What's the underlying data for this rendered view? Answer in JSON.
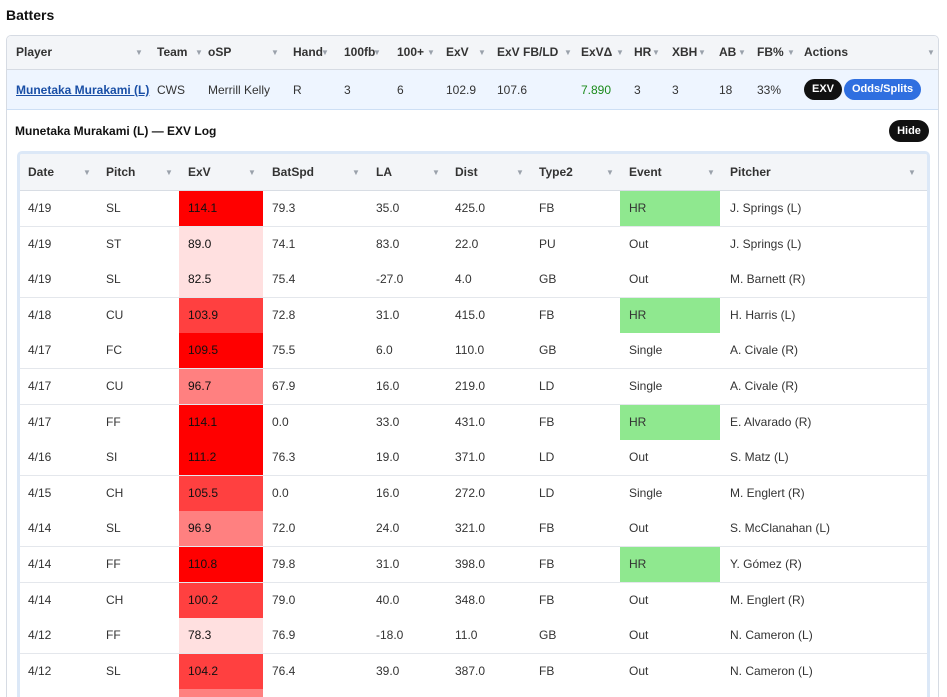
{
  "page": {
    "section_title": "Batters"
  },
  "batters": {
    "columns": [
      "Player",
      "Team",
      "oSP",
      "Hand",
      "100fb",
      "100+",
      "ExV",
      "ExV FB/LD",
      "ExVΔ",
      "HR",
      "XBH",
      "AB",
      "FB%",
      "Actions"
    ],
    "row": {
      "player": "Munetaka Murakami (L)",
      "team": "CWS",
      "osp": "Merrill Kelly",
      "hand": "R",
      "fb100": "3",
      "plus100": "6",
      "exv": "102.9",
      "exv_fbld": "107.6",
      "exv_delta": "7.890",
      "hr": "3",
      "xbh": "3",
      "ab": "18",
      "fb_pct": "33%",
      "btn_exv": "EXV",
      "btn_odds": "Odds/Splits"
    },
    "colors": {
      "delta_positive": "#1a8a1a",
      "link": "#1a4fa6",
      "row_highlight": "#eef5ff"
    }
  },
  "exv_log": {
    "title": "Munetaka Murakami (L) — EXV Log",
    "hide_label": "Hide",
    "columns": [
      "Date",
      "Pitch",
      "ExV",
      "BatSpd",
      "LA",
      "Dist",
      "Type2",
      "Event",
      "Pitcher"
    ],
    "heat_colors": {
      "very_high": "#ff0000",
      "high": "#ff4040",
      "mid": "#ff8080",
      "low": "#ffe0e0",
      "hr_event": "#8fe88f"
    },
    "rows": [
      {
        "date": "4/19",
        "pitch": "SL",
        "exv": "114.1",
        "batspd": "79.3",
        "la": "35.0",
        "dist": "425.0",
        "type2": "FB",
        "event": "HR",
        "pitcher": "J. Springs (L)",
        "heat": "very_high"
      },
      {
        "date": "4/19",
        "pitch": "ST",
        "exv": "89.0",
        "batspd": "74.1",
        "la": "83.0",
        "dist": "22.0",
        "type2": "PU",
        "event": "Out",
        "pitcher": "J. Springs (L)",
        "heat": "low"
      },
      {
        "date": "4/19",
        "pitch": "SL",
        "exv": "82.5",
        "batspd": "75.4",
        "la": "-27.0",
        "dist": "4.0",
        "type2": "GB",
        "event": "Out",
        "pitcher": "M. Barnett (R)",
        "heat": "low"
      },
      {
        "date": "4/18",
        "pitch": "CU",
        "exv": "103.9",
        "batspd": "72.8",
        "la": "31.0",
        "dist": "415.0",
        "type2": "FB",
        "event": "HR",
        "pitcher": "H. Harris (L)",
        "heat": "high"
      },
      {
        "date": "4/17",
        "pitch": "FC",
        "exv": "109.5",
        "batspd": "75.5",
        "la": "6.0",
        "dist": "110.0",
        "type2": "GB",
        "event": "Single",
        "pitcher": "A. Civale (R)",
        "heat": "very_high"
      },
      {
        "date": "4/17",
        "pitch": "CU",
        "exv": "96.7",
        "batspd": "67.9",
        "la": "16.0",
        "dist": "219.0",
        "type2": "LD",
        "event": "Single",
        "pitcher": "A. Civale (R)",
        "heat": "mid"
      },
      {
        "date": "4/17",
        "pitch": "FF",
        "exv": "114.1",
        "batspd": "0.0",
        "la": "33.0",
        "dist": "431.0",
        "type2": "FB",
        "event": "HR",
        "pitcher": "E. Alvarado (R)",
        "heat": "very_high"
      },
      {
        "date": "4/16",
        "pitch": "SI",
        "exv": "111.2",
        "batspd": "76.3",
        "la": "19.0",
        "dist": "371.0",
        "type2": "LD",
        "event": "Out",
        "pitcher": "S. Matz (L)",
        "heat": "very_high"
      },
      {
        "date": "4/15",
        "pitch": "CH",
        "exv": "105.5",
        "batspd": "0.0",
        "la": "16.0",
        "dist": "272.0",
        "type2": "LD",
        "event": "Single",
        "pitcher": "M. Englert (R)",
        "heat": "high"
      },
      {
        "date": "4/14",
        "pitch": "SL",
        "exv": "96.9",
        "batspd": "72.0",
        "la": "24.0",
        "dist": "321.0",
        "type2": "FB",
        "event": "Out",
        "pitcher": "S. McClanahan (L)",
        "heat": "mid"
      },
      {
        "date": "4/14",
        "pitch": "FF",
        "exv": "110.8",
        "batspd": "79.8",
        "la": "31.0",
        "dist": "398.0",
        "type2": "FB",
        "event": "HR",
        "pitcher": "Y. Gómez (R)",
        "heat": "very_high"
      },
      {
        "date": "4/14",
        "pitch": "CH",
        "exv": "100.2",
        "batspd": "79.0",
        "la": "40.0",
        "dist": "348.0",
        "type2": "FB",
        "event": "Out",
        "pitcher": "M. Englert (R)",
        "heat": "high"
      },
      {
        "date": "4/12",
        "pitch": "FF",
        "exv": "78.3",
        "batspd": "76.9",
        "la": "-18.0",
        "dist": "11.0",
        "type2": "GB",
        "event": "Out",
        "pitcher": "N. Cameron (L)",
        "heat": "low"
      },
      {
        "date": "4/12",
        "pitch": "SL",
        "exv": "104.2",
        "batspd": "76.4",
        "la": "39.0",
        "dist": "387.0",
        "type2": "FB",
        "event": "Out",
        "pitcher": "N. Cameron (L)",
        "heat": "high"
      },
      {
        "date": "",
        "pitch": "",
        "exv": "",
        "batspd": "",
        "la": "",
        "dist": "",
        "type2": "",
        "event": "",
        "pitcher": "",
        "heat": "mid"
      }
    ]
  }
}
